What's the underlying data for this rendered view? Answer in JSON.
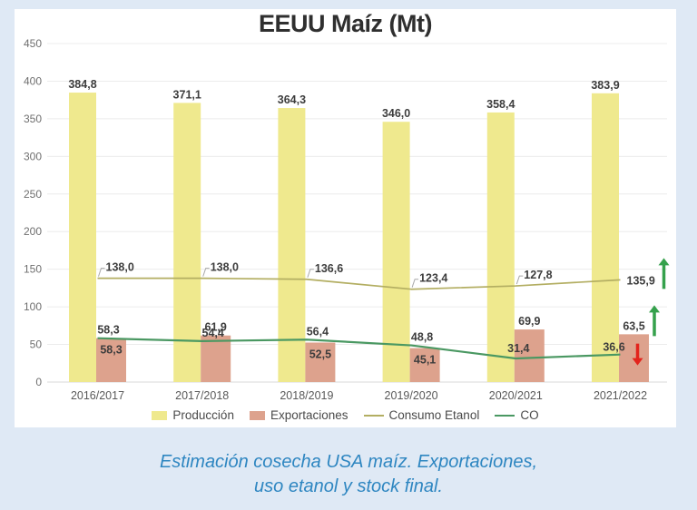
{
  "page": {
    "background_color": "#dfe9f5",
    "panel_color": "#ffffff"
  },
  "chart": {
    "title": "EEUU Maíz (Mt)",
    "legend": [
      {
        "label": "Producción",
        "swatch": "box",
        "color": "#efe98e"
      },
      {
        "label": "Exportaciones",
        "swatch": "box",
        "color": "#dda28d"
      },
      {
        "label": "Consumo Etanol",
        "swatch": "line",
        "color": "#b3ae62"
      },
      {
        "label": "CO",
        "swatch": "line",
        "color": "#4a9862"
      }
    ]
  },
  "chart_data": {
    "type": "combo bar+line",
    "title": "EEUU Maíz (Mt)",
    "categories": [
      "2016/2017",
      "2017/2018",
      "2018/2019",
      "2019/2020",
      "2020/2021",
      "2021/2022"
    ],
    "series": [
      {
        "name": "Producción",
        "type": "bar",
        "color": "#efe98e",
        "values": [
          384.8,
          371.1,
          364.3,
          346.0,
          358.4,
          383.9
        ]
      },
      {
        "name": "Exportaciones",
        "type": "bar",
        "color": "#dda28d",
        "values": [
          58.3,
          61.9,
          52.5,
          45.1,
          69.9,
          63.5
        ]
      },
      {
        "name": "Consumo Etanol",
        "type": "line",
        "color": "#b3ae62",
        "values": [
          138.0,
          138.0,
          136.6,
          123.4,
          127.8,
          135.9
        ]
      },
      {
        "name": "CO",
        "type": "line",
        "color": "#4a9862",
        "values": [
          58.3,
          54.4,
          56.4,
          48.8,
          31.4,
          36.6
        ]
      }
    ],
    "ylim": [
      0,
      450
    ],
    "ytick_step": 50,
    "grid": true,
    "legend_position": "bottom",
    "decimal_separator": ",",
    "annotations": [
      {
        "target": "Consumo Etanol",
        "index": 5,
        "direction": "up",
        "color": "#35a14c"
      },
      {
        "target": "Exportaciones",
        "index": 5,
        "direction": "up",
        "color": "#35a14c"
      },
      {
        "target": "CO",
        "index": 5,
        "direction": "down",
        "color": "#e3241d"
      }
    ]
  },
  "caption": {
    "line1": "Estimación cosecha USA maíz. Exportaciones,",
    "line2": "uso etanol y stock final."
  }
}
